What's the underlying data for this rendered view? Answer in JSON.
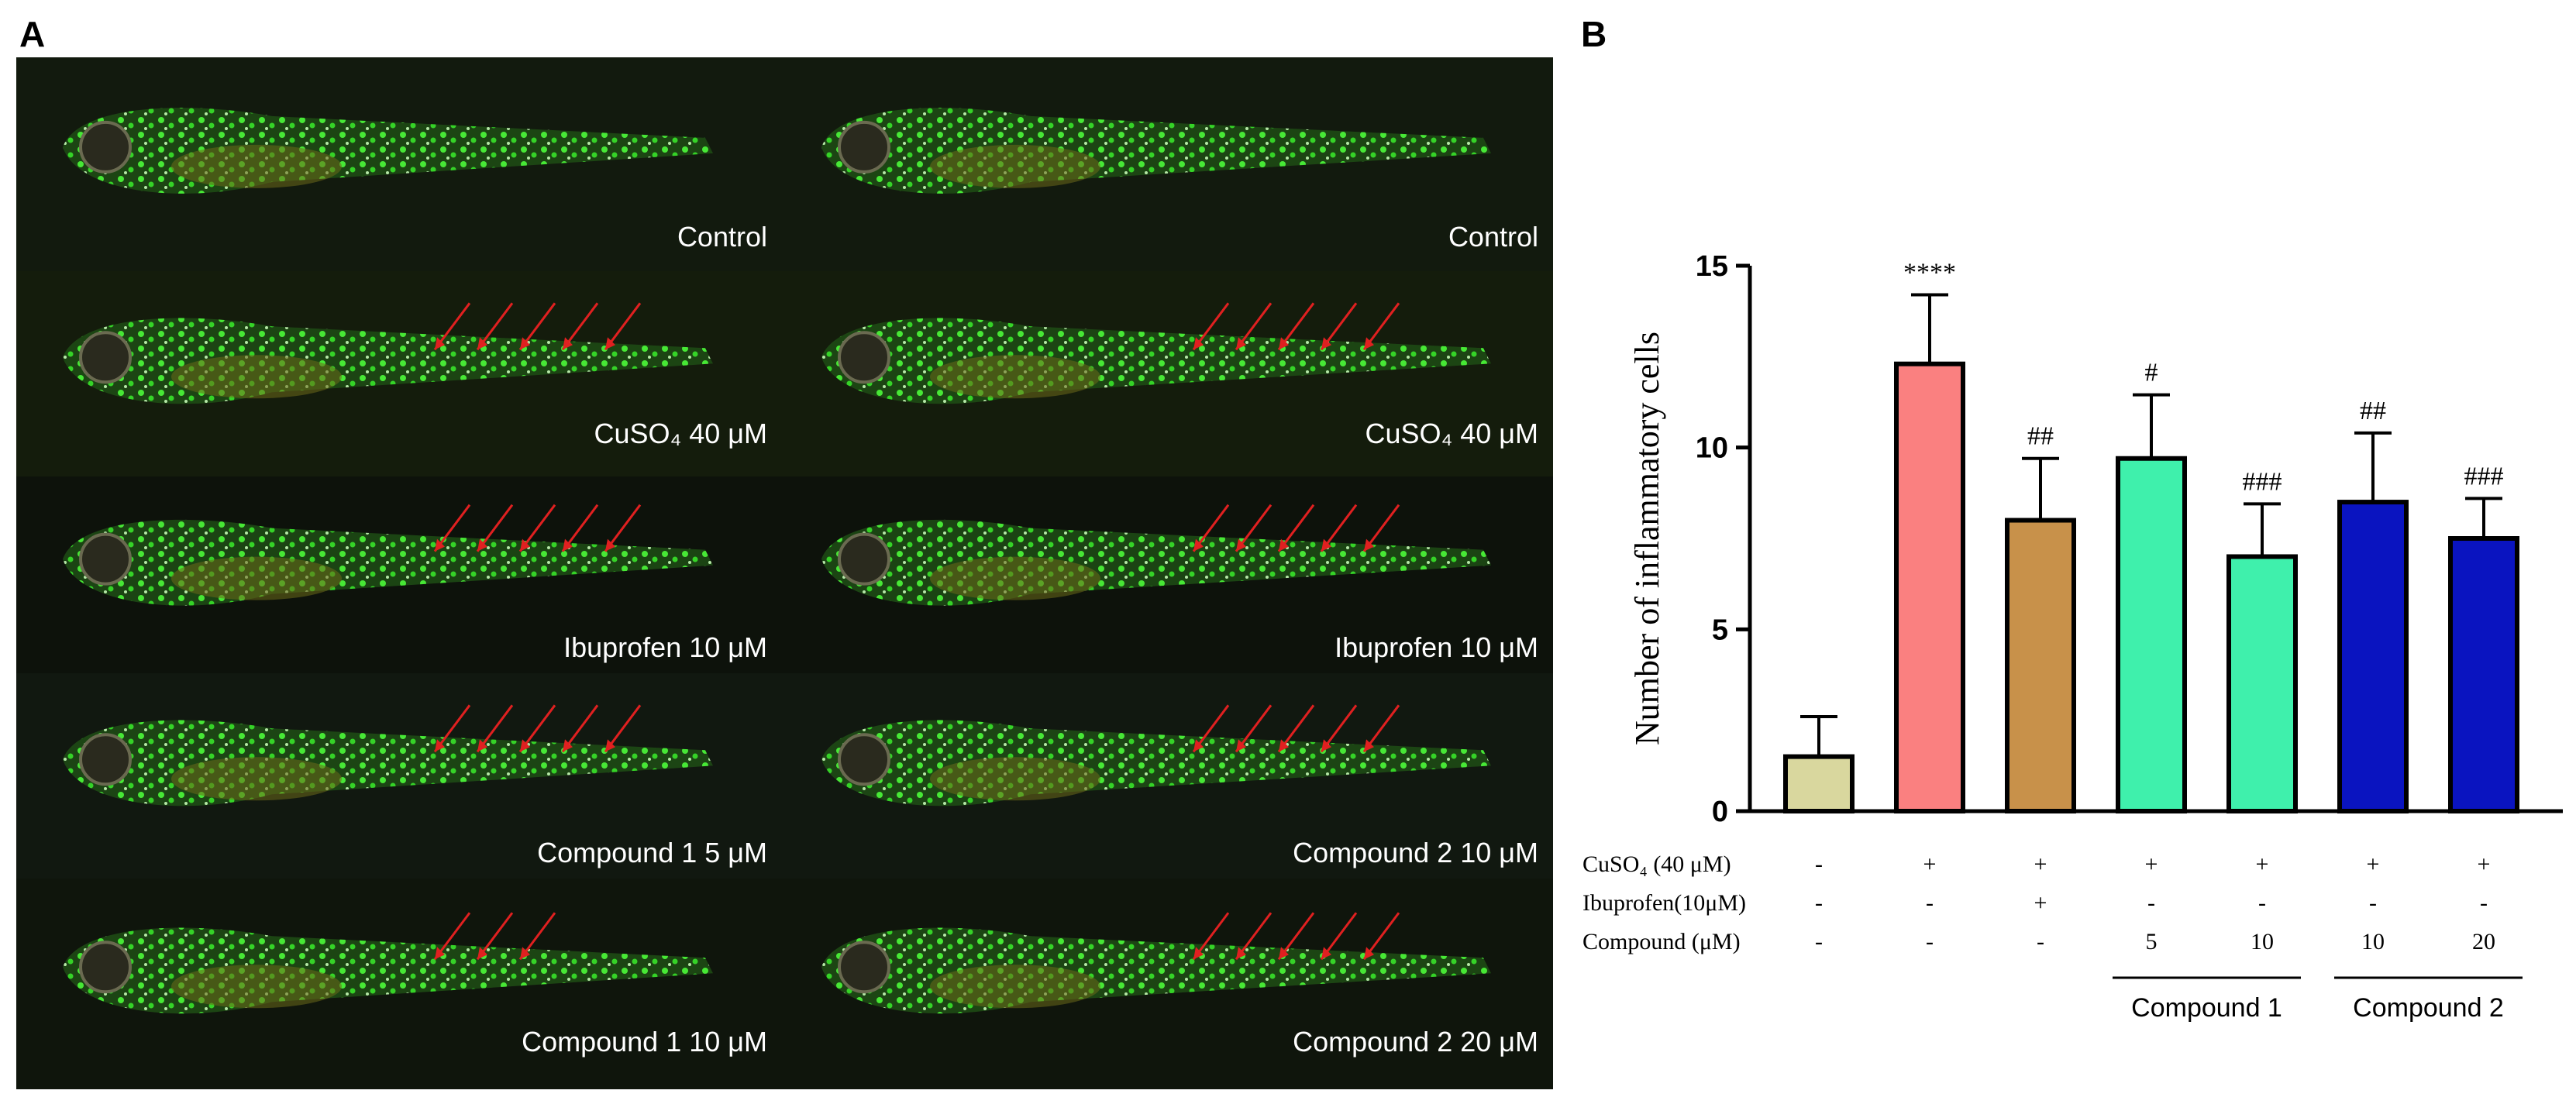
{
  "panel_a": {
    "label": "A",
    "images": [
      {
        "label": "Control"
      },
      {
        "label": "Control"
      },
      {
        "label": "CuSO₄ 40 μM"
      },
      {
        "label": "CuSO₄ 40 μM"
      },
      {
        "label": "Ibuprofen 10 μM"
      },
      {
        "label": "Ibuprofen 10 μM"
      },
      {
        "label": "Compound 1 5 μM"
      },
      {
        "label": "Compound 2 10 μM"
      },
      {
        "label": "Compound 1 10 μM"
      },
      {
        "label": "Compound 2 20 μM"
      }
    ]
  },
  "chart_data": {
    "type": "bar",
    "panel_label": "B",
    "y_label": "Number of inflammatory cells",
    "categories": [
      null,
      null,
      null,
      null,
      null,
      null,
      null
    ],
    "values": [
      1.5,
      12.3,
      8.0,
      9.7,
      7.0,
      8.5,
      7.5
    ],
    "errors": [
      1.1,
      1.9,
      1.7,
      1.75,
      1.45,
      1.9,
      1.1
    ],
    "colors": [
      "#d9d79e",
      "#fa8080",
      "#c8914a",
      "#3ff0ac",
      "#3ff0ac",
      "#0a14c0",
      "#0a14c0"
    ],
    "annotations": [
      null,
      "****",
      "##",
      "#",
      "###",
      "##",
      "###"
    ],
    "ylim": [
      0,
      15
    ],
    "yticks": [
      0,
      5,
      10,
      15
    ],
    "treatments": [
      {
        "label": "CuSO₄ (40 μM)",
        "values": [
          "-",
          "+",
          "+",
          "+",
          "+",
          "+",
          "+"
        ]
      },
      {
        "label": "Ibuprofen(10μM)",
        "values": [
          "-",
          "-",
          "+",
          "-",
          "-",
          "-",
          "-"
        ]
      },
      {
        "label": "Compound (μM)",
        "values": [
          "-",
          "-",
          "-",
          "5",
          "10",
          "10",
          "20"
        ]
      }
    ],
    "groups": [
      "Compound 1",
      "Compound 2"
    ]
  }
}
